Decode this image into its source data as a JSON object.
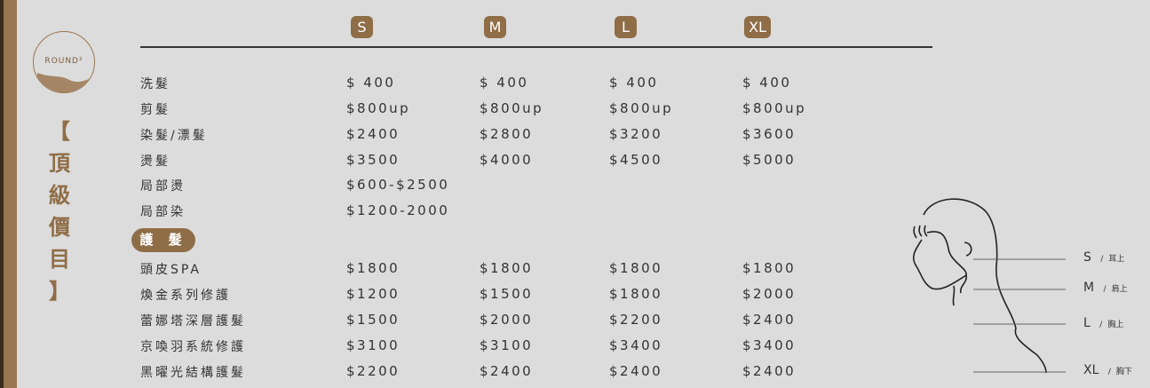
{
  "logo": "ROUND²",
  "title": [
    "【",
    "頂",
    "級",
    "價",
    "目",
    "】"
  ],
  "sizes": [
    "S",
    "M",
    "L",
    "XL"
  ],
  "section_badge": "護 髮",
  "rows_top": [
    {
      "name": "洗髮",
      "prices": [
        "$ 400",
        "$ 400",
        "$ 400",
        "$ 400"
      ]
    },
    {
      "name": "剪髮",
      "prices": [
        "$800up",
        "$800up",
        "$800up",
        "$800up"
      ]
    },
    {
      "name": "染髮/漂髮",
      "prices": [
        "$2400",
        "$2800",
        "$3200",
        "$3600"
      ]
    },
    {
      "name": "燙髮",
      "prices": [
        "$3500",
        "$4000",
        "$4500",
        "$5000"
      ]
    },
    {
      "name": "局部燙",
      "prices": [
        "$600-$2500"
      ]
    },
    {
      "name": "局部染",
      "prices": [
        "$1200-2000"
      ]
    }
  ],
  "rows_care": [
    {
      "name": "頭皮SPA",
      "prices": [
        "$1800",
        "$1800",
        "$1800",
        "$1800"
      ]
    },
    {
      "name": "煥金系列修護",
      "prices": [
        "$1200",
        "$1500",
        "$1800",
        "$2000"
      ]
    },
    {
      "name": "蕾娜塔深層護髮",
      "prices": [
        "$1500",
        "$2000",
        "$2200",
        "$2400"
      ]
    },
    {
      "name": "京喚羽系統修護",
      "prices": [
        "$3100",
        "$3100",
        "$3400",
        "$3400"
      ]
    },
    {
      "name": "黑曜光結構護髮",
      "prices": [
        "$2200",
        "$2400",
        "$2400",
        "$2400"
      ]
    }
  ],
  "length_guide": [
    {
      "size": "S",
      "sep": "/",
      "desc": "耳上"
    },
    {
      "size": "M",
      "sep": "/",
      "desc": "肩上"
    },
    {
      "size": "L",
      "sep": "/",
      "desc": "胸上"
    },
    {
      "size": "XL",
      "sep": "/",
      "desc": "胸下"
    }
  ],
  "colors": {
    "brand": "#8f6d47",
    "background": "#dcdcdc"
  }
}
